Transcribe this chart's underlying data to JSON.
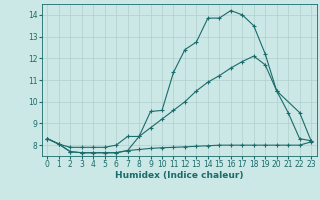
{
  "xlabel": "Humidex (Indice chaleur)",
  "xlim": [
    -0.5,
    23.5
  ],
  "ylim": [
    7.5,
    14.5
  ],
  "yticks": [
    8,
    9,
    10,
    11,
    12,
    13,
    14
  ],
  "xticks": [
    0,
    1,
    2,
    3,
    4,
    5,
    6,
    7,
    8,
    9,
    10,
    11,
    12,
    13,
    14,
    15,
    16,
    17,
    18,
    19,
    20,
    21,
    22,
    23
  ],
  "bg_color": "#cce8e6",
  "grid_color": "#aecfcd",
  "line_color": "#1a6b6b",
  "line1_x": [
    0,
    1,
    2,
    3,
    4,
    5,
    6,
    7,
    8,
    9,
    10,
    11,
    12,
    13,
    14,
    15,
    16,
    17,
    18,
    19,
    20,
    21,
    22,
    23
  ],
  "line1_y": [
    8.3,
    8.05,
    7.7,
    7.65,
    7.65,
    7.65,
    7.65,
    7.75,
    8.4,
    9.55,
    9.6,
    11.35,
    12.4,
    12.75,
    13.85,
    13.85,
    14.2,
    14.0,
    13.5,
    12.2,
    10.5,
    9.5,
    8.3,
    8.2
  ],
  "line2_x": [
    0,
    1,
    2,
    3,
    4,
    5,
    6,
    7,
    8,
    9,
    10,
    11,
    12,
    13,
    14,
    15,
    16,
    17,
    18,
    19,
    20,
    22,
    23
  ],
  "line2_y": [
    8.3,
    8.05,
    7.9,
    7.9,
    7.9,
    7.9,
    8.0,
    8.4,
    8.4,
    8.8,
    9.2,
    9.6,
    10.0,
    10.5,
    10.9,
    11.2,
    11.55,
    11.85,
    12.1,
    11.7,
    10.5,
    9.5,
    8.2
  ],
  "line3_x": [
    0,
    1,
    2,
    3,
    4,
    5,
    6,
    7,
    8,
    9,
    10,
    11,
    12,
    13,
    14,
    15,
    16,
    17,
    18,
    19,
    20,
    21,
    22,
    23
  ],
  "line3_y": [
    8.3,
    8.05,
    7.7,
    7.65,
    7.65,
    7.65,
    7.65,
    7.75,
    7.8,
    7.85,
    7.88,
    7.9,
    7.92,
    7.95,
    7.97,
    8.0,
    8.0,
    8.0,
    8.0,
    8.0,
    8.0,
    8.0,
    8.0,
    8.15
  ]
}
